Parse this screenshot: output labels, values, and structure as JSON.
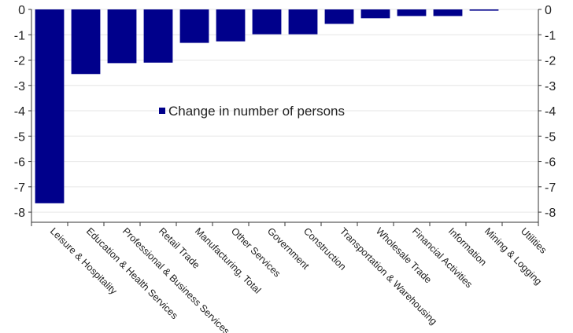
{
  "chart_data": {
    "type": "bar",
    "categories": [
      "Leisure & Hospitality",
      "Education & Health Services",
      "Professional & Business Services",
      "Retail Trade",
      "Manufacturing, Total",
      "Other Services",
      "Government",
      "Construction",
      "Transportation & Warehousing",
      "Wholesale Trade",
      "Financial Activities",
      "Information",
      "Mining & Logging",
      "Utilities"
    ],
    "series": [
      {
        "name": "Change in number of persons",
        "values": [
          -7.65,
          -2.55,
          -2.12,
          -2.1,
          -1.32,
          -1.26,
          -0.98,
          -0.98,
          -0.57,
          -0.35,
          -0.26,
          -0.26,
          -0.05,
          0.0
        ]
      }
    ],
    "ylim": [
      -8.4,
      0
    ],
    "yticks": [
      0,
      -1,
      -2,
      -3,
      -4,
      -5,
      -6,
      -7,
      -8
    ],
    "ytick_labels": [
      "0",
      "-1",
      "-2",
      "-3",
      "-4",
      "-5",
      "-6",
      "-7",
      "-8"
    ],
    "secondary_y_axis": true,
    "grid": true,
    "legend_position": "center-left",
    "colors": {
      "bar": "#00008b",
      "grid": "#e6e6e6",
      "axis": "#333333"
    }
  }
}
